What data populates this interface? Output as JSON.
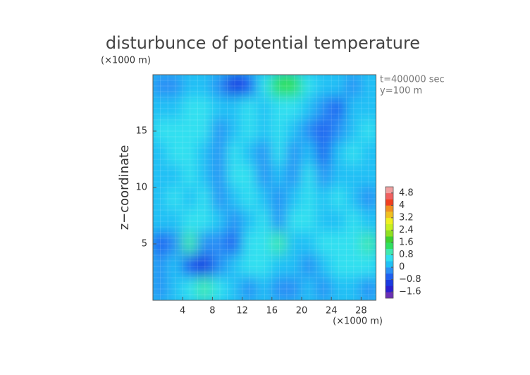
{
  "chart_data": {
    "type": "contour",
    "title": "disturbunce of potential temperature",
    "y_unit": "(×1000 m)",
    "x_unit": "(×1000 m)",
    "ylabel": "z−coordinate",
    "annotations": [
      "t=400000 sec",
      "y=100 m"
    ],
    "xlim": [
      0,
      30
    ],
    "ylim": [
      0,
      20
    ],
    "xticks": [
      4,
      8,
      12,
      16,
      20,
      24,
      28
    ],
    "yticks": [
      5,
      10,
      15
    ],
    "x": [
      1,
      3,
      5,
      7,
      9,
      11,
      13,
      15,
      17,
      19,
      21,
      23,
      25,
      27,
      29
    ],
    "y": [
      19,
      17,
      15,
      13,
      11,
      9,
      7,
      5,
      3,
      1
    ],
    "z": [
      [
        -0.4,
        -0.4,
        0,
        0,
        -0.4,
        -1.2,
        -0.8,
        0.4,
        1.2,
        1.2,
        0.4,
        0,
        0,
        -0.4,
        0
      ],
      [
        0,
        0,
        0.4,
        0.4,
        0,
        0,
        0.4,
        0,
        0.4,
        0.4,
        0,
        -0.4,
        -0.8,
        0,
        0
      ],
      [
        0.4,
        0.4,
        0.4,
        0.4,
        -0.4,
        0,
        0.4,
        0,
        0.4,
        0,
        -0.4,
        -0.8,
        -0.4,
        0,
        0.4
      ],
      [
        0,
        0.4,
        0.4,
        0,
        -0.4,
        0.4,
        0,
        -0.4,
        0.4,
        -0.4,
        0,
        -0.8,
        0,
        0.4,
        0
      ],
      [
        0,
        0,
        0.4,
        0,
        -0.4,
        0.4,
        0.4,
        -0.4,
        0,
        -0.4,
        0.4,
        -0.4,
        0,
        0,
        0
      ],
      [
        0,
        0.4,
        0,
        0.4,
        -0.4,
        0,
        0.4,
        0,
        -0.4,
        0,
        0.4,
        0,
        0.4,
        0,
        -0.4
      ],
      [
        0,
        0,
        0.4,
        0.4,
        0,
        -0.4,
        0,
        0.4,
        -0.4,
        0.4,
        0.4,
        0,
        0,
        0.4,
        0
      ],
      [
        -0.8,
        -0.4,
        0.8,
        -0.4,
        -0.4,
        -0.8,
        0.4,
        0.4,
        0.8,
        0,
        0,
        0.4,
        0.4,
        0.4,
        0.8
      ],
      [
        -0.4,
        0,
        -0.8,
        -1.2,
        -0.4,
        0,
        0.4,
        0.4,
        0,
        0,
        -0.4,
        0,
        0.4,
        0.4,
        0.4
      ],
      [
        -0.4,
        0,
        0.4,
        0.8,
        0.4,
        0,
        -0.4,
        0,
        -0.4,
        -0.4,
        0,
        -0.4,
        0,
        0,
        -0.4
      ]
    ],
    "clim": [
      -2,
      5.2
    ],
    "colors": [
      "#6b2fb5",
      "#2a1fd0",
      "#1a3ae0",
      "#2060f0",
      "#2a90f5",
      "#20c0f5",
      "#30e0f0",
      "#40e8b0",
      "#30e060",
      "#40d030",
      "#90e020",
      "#c8f020",
      "#f0f020",
      "#f0c020",
      "#f09020",
      "#f04020",
      "#f06060",
      "#f0a0a0"
    ],
    "cticks": [
      {
        "value": -1.6,
        "label": "−1.6"
      },
      {
        "value": -0.8,
        "label": "−0.8"
      },
      0,
      0.8,
      1.6,
      2.4,
      3.2,
      4,
      4.8
    ]
  }
}
